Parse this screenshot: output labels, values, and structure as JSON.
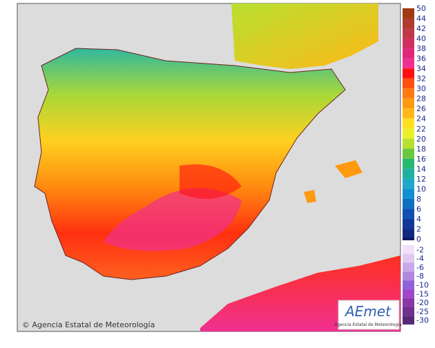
{
  "map": {
    "credit": "Agencia Estatal de Meteorología",
    "logo": {
      "name": "AEmet",
      "subtitle": "Agencia Estatal de Meteorología"
    },
    "legend_upper": [
      {
        "label": 50,
        "color": "#a03a10"
      },
      {
        "label": 44,
        "color": "#b03a30"
      },
      {
        "label": 42,
        "color": "#c03848"
      },
      {
        "label": 40,
        "color": "#d03060"
      },
      {
        "label": 38,
        "color": "#e02878"
      },
      {
        "label": 36,
        "color": "#f03090"
      },
      {
        "label": 34,
        "color": "#ff1010"
      },
      {
        "label": 32,
        "color": "#ff5010"
      },
      {
        "label": 30,
        "color": "#ff7a10"
      },
      {
        "label": 28,
        "color": "#ff9a10"
      },
      {
        "label": 26,
        "color": "#ffb818"
      },
      {
        "label": 24,
        "color": "#ffe020"
      },
      {
        "label": 22,
        "color": "#e8f028"
      },
      {
        "label": 20,
        "color": "#b8e030"
      },
      {
        "label": 18,
        "color": "#68c840"
      },
      {
        "label": 16,
        "color": "#28b870"
      },
      {
        "label": 14,
        "color": "#20b0a0"
      },
      {
        "label": 12,
        "color": "#20a8c8"
      },
      {
        "label": 10,
        "color": "#1090d0"
      },
      {
        "label": 8,
        "color": "#1070c0"
      },
      {
        "label": 6,
        "color": "#1050b0"
      },
      {
        "label": 4,
        "color": "#103898"
      },
      {
        "label": 2,
        "color": "#102880"
      },
      {
        "label": 0,
        "color": "#101860"
      }
    ],
    "legend_lower": [
      {
        "label": -2,
        "color": "#f0e0f8"
      },
      {
        "label": -4,
        "color": "#e0c8f0"
      },
      {
        "label": -6,
        "color": "#c8a8e8"
      },
      {
        "label": -8,
        "color": "#b088e0"
      },
      {
        "label": -10,
        "color": "#9060d8"
      },
      {
        "label": -15,
        "color": "#a048c8"
      },
      {
        "label": -20,
        "color": "#8838a8"
      },
      {
        "label": -25,
        "color": "#703090"
      },
      {
        "label": -30,
        "color": "#582878"
      }
    ]
  }
}
